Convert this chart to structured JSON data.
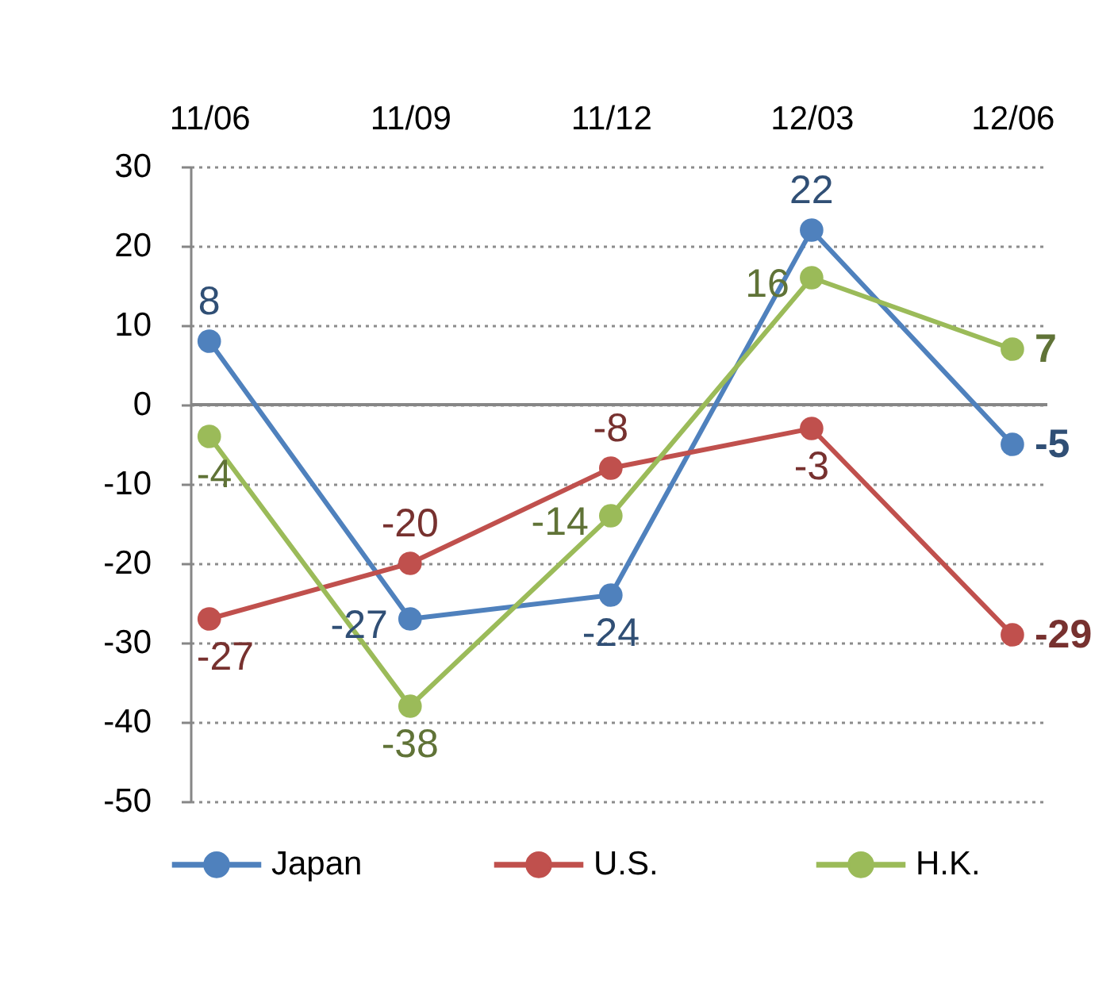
{
  "chart_data": {
    "type": "line",
    "categories": [
      "11/06",
      "11/09",
      "11/12",
      "12/03",
      "12/06"
    ],
    "series": [
      {
        "name": "Japan",
        "color": "#4f81bd",
        "values": [
          8,
          -27,
          -24,
          22,
          -5
        ]
      },
      {
        "name": "U.S.",
        "color": "#c0504d",
        "values": [
          -27,
          -20,
          -8,
          -3,
          -29
        ]
      },
      {
        "name": "H.K.",
        "color": "#9bbb59",
        "values": [
          -4,
          -38,
          -14,
          16,
          7
        ]
      }
    ],
    "ylim": [
      -50,
      30
    ],
    "yticks": [
      -50,
      -40,
      -30,
      -20,
      -10,
      0,
      10,
      20,
      30
    ],
    "ref_lines": [
      {
        "axis": "y",
        "value": 0,
        "color": "#868686"
      }
    ],
    "grid": "y",
    "legend": "bottom",
    "marker": "circle",
    "line_style": "solid",
    "data_labels": true
  }
}
